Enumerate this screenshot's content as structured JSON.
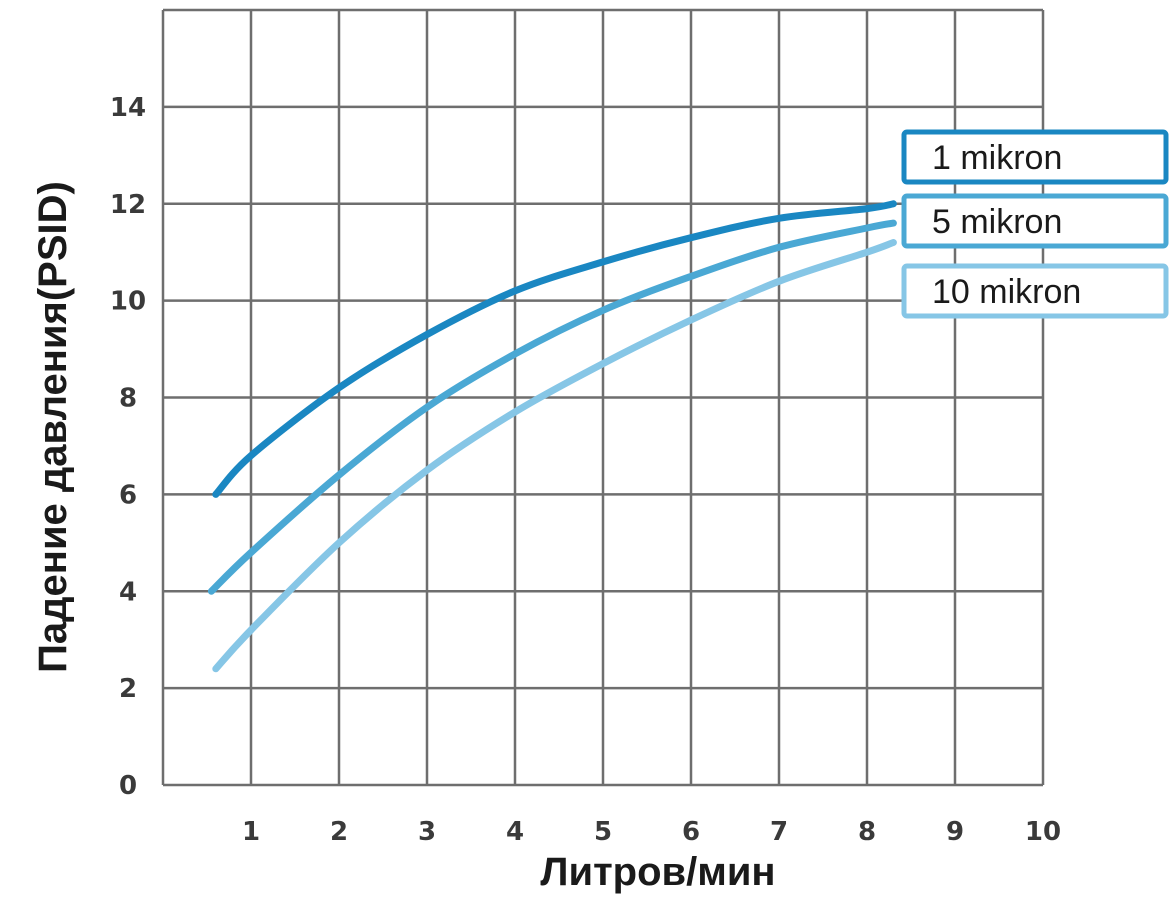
{
  "chart_data": {
    "type": "line",
    "xlabel": "Литров/мин",
    "ylabel": "Падение давления(PSID)",
    "xlim": [
      0,
      10
    ],
    "ylim": [
      0,
      16
    ],
    "x_ticks": [
      "1",
      "2",
      "3",
      "4",
      "5",
      "6",
      "7",
      "8",
      "9",
      "10"
    ],
    "y_ticks": [
      "0",
      "2",
      "4",
      "6",
      "8",
      "10",
      "12",
      "14"
    ],
    "grid": true,
    "legend_position": "right",
    "series": [
      {
        "name": "1 mikron",
        "color": "#1a87c2",
        "x": [
          0.6,
          1,
          2,
          3,
          4,
          5,
          6,
          7,
          8,
          8.3
        ],
        "y": [
          6.0,
          6.8,
          8.2,
          9.3,
          10.2,
          10.8,
          11.3,
          11.7,
          11.9,
          12.0
        ]
      },
      {
        "name": "5 mikron",
        "color": "#4aa8d4",
        "x": [
          0.55,
          1,
          2,
          3,
          4,
          5,
          6,
          7,
          8,
          8.3
        ],
        "y": [
          4.0,
          4.8,
          6.4,
          7.8,
          8.9,
          9.8,
          10.5,
          11.1,
          11.5,
          11.6
        ]
      },
      {
        "name": "10 mikron",
        "color": "#86c6e6",
        "x": [
          0.6,
          1,
          2,
          3,
          4,
          5,
          6,
          7,
          8,
          8.3
        ],
        "y": [
          2.4,
          3.2,
          5.0,
          6.5,
          7.7,
          8.7,
          9.6,
          10.4,
          11.0,
          11.2
        ]
      }
    ]
  }
}
